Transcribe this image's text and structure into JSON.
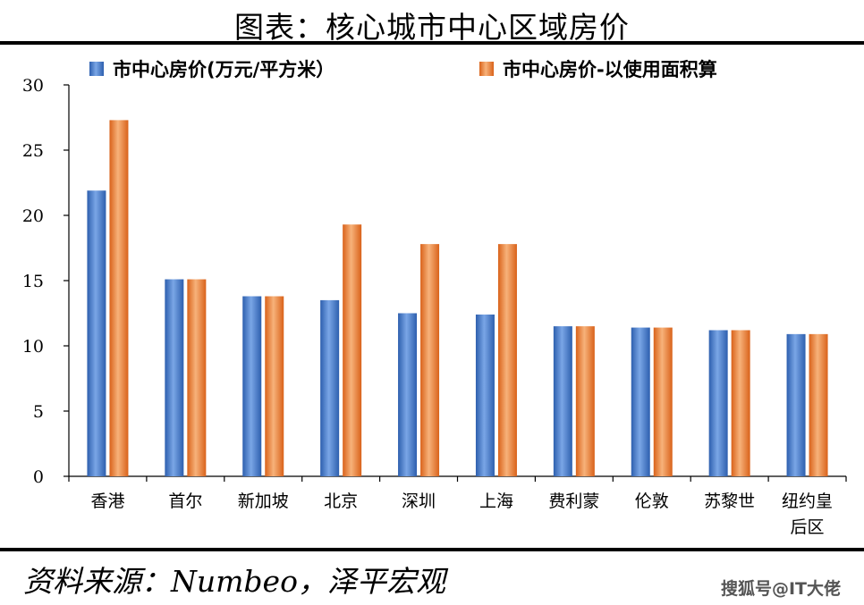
{
  "header": {
    "title": "图表：核心城市中心区域房价"
  },
  "footer": {
    "source": "资料来源：Numbeo，泽平宏观",
    "watermark": "搜狐号@IT大佬"
  },
  "colors": {
    "series1": "#4a7cc9",
    "series2": "#f08a3c"
  },
  "chart_data": {
    "type": "bar",
    "title": "图表：核心城市中心区域房价",
    "xlabel": "",
    "ylabel": "",
    "ylim": [
      0,
      30
    ],
    "yticks": [
      "0",
      "5",
      "10",
      "15",
      "20",
      "25",
      "30"
    ],
    "grid": false,
    "legend_position": "top",
    "categories": [
      [
        "香港"
      ],
      [
        "首尔"
      ],
      [
        "新加坡"
      ],
      [
        "北京"
      ],
      [
        "深圳"
      ],
      [
        "上海"
      ],
      [
        "费利蒙"
      ],
      [
        "伦敦"
      ],
      [
        "苏黎世"
      ],
      [
        "纽约皇",
        "后区"
      ]
    ],
    "series": [
      {
        "name": "市中心房价(万元/平方米）",
        "values": [
          21.9,
          15.1,
          13.8,
          13.5,
          12.5,
          12.4,
          11.5,
          11.4,
          11.2,
          10.9
        ]
      },
      {
        "name": "市中心房价-以使用面积算",
        "values": [
          27.3,
          15.1,
          13.8,
          19.3,
          17.8,
          17.8,
          11.5,
          11.4,
          11.2,
          10.9
        ]
      }
    ]
  }
}
